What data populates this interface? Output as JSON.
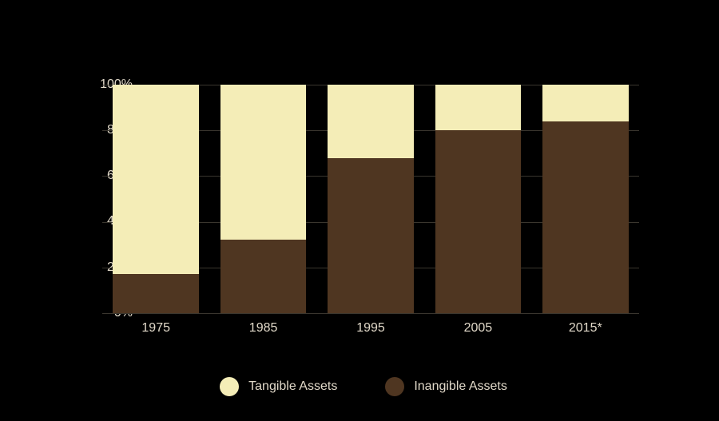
{
  "chart": {
    "type": "stacked-bar",
    "background_color": "#000000",
    "text_color": "#e0d8c8",
    "grid_color": "#3a362e",
    "label_fontsize": 16,
    "ylim": [
      0,
      100
    ],
    "ytick_step": 20,
    "yticks": [
      {
        "v": 0,
        "label": "0%"
      },
      {
        "v": 20,
        "label": "20%"
      },
      {
        "v": 40,
        "label": "40%"
      },
      {
        "v": 60,
        "label": "60%"
      },
      {
        "v": 80,
        "label": "80%"
      },
      {
        "v": 100,
        "label": "100%"
      }
    ],
    "categories": [
      "1975",
      "1985",
      "1995",
      "2005",
      "2015*"
    ],
    "series": [
      {
        "name": "Inangible Assets",
        "color": "#4f3621",
        "values": [
          17,
          32,
          68,
          80,
          84
        ]
      },
      {
        "name": "Tangible Assets",
        "color": "#f4edb7",
        "values": [
          83,
          68,
          32,
          20,
          16
        ]
      }
    ],
    "bar_width": 0.8,
    "legend": [
      {
        "label": "Tangible Assets",
        "color": "#f4edb7"
      },
      {
        "label": "Inangible Assets",
        "color": "#4f3621"
      }
    ]
  }
}
